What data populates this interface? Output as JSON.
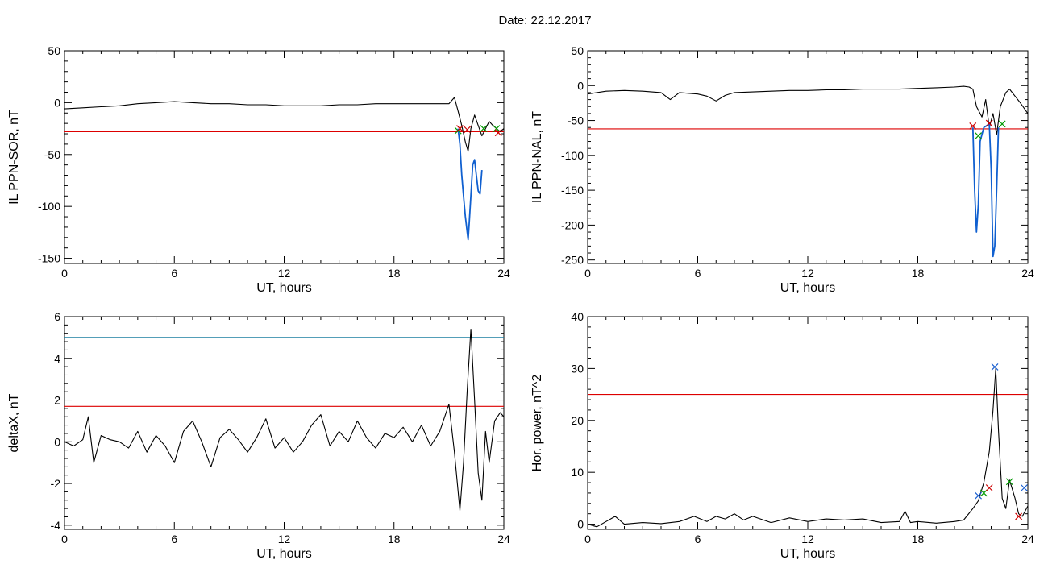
{
  "title": "Date:  22.12.2017",
  "chart_data": [
    {
      "type": "line",
      "xlabel": "UT, hours",
      "ylabel": "IL PPN-SOR, nT",
      "xlim": [
        0,
        24
      ],
      "ylim": [
        -155,
        50
      ],
      "xticks": [
        "0",
        "6",
        "12",
        "18",
        "24"
      ],
      "yticks": [
        -150,
        -100,
        -50,
        0,
        50
      ],
      "yticklabels": [
        "-150",
        "-100",
        "-50",
        "0",
        "50"
      ],
      "threshold": {
        "y": -28,
        "color": "#dd0000"
      },
      "series": [
        {
          "color": "#000000",
          "x": [
            0,
            1,
            2,
            3,
            4,
            5,
            6,
            7,
            8,
            9,
            10,
            11,
            12,
            13,
            14,
            15,
            16,
            17,
            18,
            19,
            20,
            21,
            21.3,
            21.5,
            21.7,
            21.9,
            22.05,
            22.2,
            22.4,
            22.6,
            22.8,
            23.0,
            23.2,
            23.4,
            23.6,
            23.8,
            24
          ],
          "y": [
            -6,
            -5,
            -4,
            -3,
            -1,
            0,
            1,
            0,
            -1,
            -1,
            -2,
            -2,
            -3,
            -3,
            -3,
            -2,
            -2,
            -1,
            -1,
            -1,
            -1,
            -1,
            5,
            -8,
            -22,
            -38,
            -47,
            -25,
            -12,
            -22,
            -32,
            -25,
            -18,
            -22,
            -25,
            -28,
            -25
          ]
        },
        {
          "color": "#1060d0",
          "x": [
            21.5,
            21.6,
            21.7,
            21.8,
            21.9,
            22.0,
            22.05,
            22.1,
            22.2,
            22.3,
            22.4,
            22.5,
            22.6,
            22.7,
            22.8
          ],
          "y": [
            -25,
            -40,
            -70,
            -90,
            -110,
            -125,
            -132,
            -118,
            -90,
            -60,
            -55,
            -70,
            -85,
            -88,
            -65
          ]
        }
      ],
      "markers": [
        {
          "x": 21.5,
          "y": -27,
          "color": "#009900"
        },
        {
          "x": 21.6,
          "y": -25,
          "color": "#cc0000"
        },
        {
          "x": 22.0,
          "y": -26,
          "color": "#cc0000"
        },
        {
          "x": 22.9,
          "y": -25,
          "color": "#009900"
        },
        {
          "x": 23.6,
          "y": -25,
          "color": "#009900"
        },
        {
          "x": 23.7,
          "y": -29,
          "color": "#cc0000"
        }
      ]
    },
    {
      "type": "line",
      "xlabel": "UT, hours",
      "ylabel": "IL PPN-NAL, nT",
      "xlim": [
        0,
        24
      ],
      "ylim": [
        -255,
        50
      ],
      "xticks": [
        "0",
        "6",
        "12",
        "18",
        "24"
      ],
      "yticks": [
        -250,
        -200,
        -150,
        -100,
        -50,
        0,
        50
      ],
      "yticklabels": [
        "-250",
        "-200",
        "-150",
        "-100",
        "-50",
        "0",
        "50"
      ],
      "threshold": {
        "y": -62,
        "color": "#dd0000"
      },
      "series": [
        {
          "color": "#000000",
          "x": [
            0,
            1,
            2,
            3,
            4,
            4.5,
            5,
            6,
            6.5,
            7,
            7.5,
            8,
            9,
            10,
            11,
            12,
            13,
            14,
            15,
            16,
            17,
            18,
            19,
            20,
            20.5,
            20.8,
            21.0,
            21.2,
            21.5,
            21.7,
            21.9,
            22.1,
            22.3,
            22.5,
            22.8,
            23.0,
            23.3,
            23.6,
            24
          ],
          "y": [
            -12,
            -8,
            -7,
            -8,
            -10,
            -20,
            -10,
            -12,
            -15,
            -22,
            -14,
            -10,
            -9,
            -8,
            -7,
            -7,
            -6,
            -6,
            -5,
            -5,
            -5,
            -4,
            -3,
            -2,
            -1,
            -2,
            -5,
            -30,
            -45,
            -20,
            -60,
            -40,
            -70,
            -30,
            -10,
            -5,
            -15,
            -25,
            -40
          ]
        },
        {
          "color": "#1060d0",
          "x": [
            21.0,
            21.1,
            21.2,
            21.3,
            21.4,
            21.6,
            21.9,
            22.0,
            22.1,
            22.2,
            22.3,
            22.4
          ],
          "y": [
            -60,
            -150,
            -210,
            -170,
            -80,
            -60,
            -55,
            -120,
            -245,
            -230,
            -150,
            -60
          ]
        }
      ],
      "markers": [
        {
          "x": 21.0,
          "y": -58,
          "color": "#cc0000"
        },
        {
          "x": 21.3,
          "y": -72,
          "color": "#009900"
        },
        {
          "x": 21.9,
          "y": -54,
          "color": "#cc0000"
        },
        {
          "x": 22.6,
          "y": -55,
          "color": "#009900"
        }
      ]
    },
    {
      "type": "line",
      "xlabel": "UT, hours",
      "ylabel": "deltaX, nT",
      "xlim": [
        0,
        24
      ],
      "ylim": [
        -4.2,
        6
      ],
      "xticks": [
        "0",
        "6",
        "12",
        "18",
        "24"
      ],
      "yticks": [
        -4,
        -2,
        0,
        2,
        4,
        6
      ],
      "yticklabels": [
        "-4",
        "-2",
        "0",
        "2",
        "4",
        "6"
      ],
      "threshold": {
        "y": 1.7,
        "color": "#dd0000"
      },
      "threshold2": {
        "y": 5.0,
        "color": "#1a7fa0"
      },
      "series": [
        {
          "color": "#000000",
          "x": [
            0,
            0.5,
            1,
            1.3,
            1.6,
            2,
            2.5,
            3,
            3.5,
            4,
            4.5,
            5,
            5.5,
            6,
            6.5,
            7,
            7.5,
            8,
            8.5,
            9,
            9.5,
            10,
            10.5,
            11,
            11.5,
            12,
            12.5,
            13,
            13.5,
            14,
            14.5,
            15,
            15.5,
            16,
            16.5,
            17,
            17.5,
            18,
            18.5,
            19,
            19.5,
            20,
            20.5,
            21,
            21.3,
            21.6,
            21.8,
            22.0,
            22.2,
            22.4,
            22.6,
            22.8,
            23.0,
            23.2,
            23.5,
            23.8,
            24
          ],
          "y": [
            0,
            -0.2,
            0.1,
            1.2,
            -1.0,
            0.3,
            0.1,
            0.0,
            -0.3,
            0.5,
            -0.5,
            0.3,
            -0.2,
            -1.0,
            0.5,
            1.0,
            0.0,
            -1.2,
            0.2,
            0.6,
            0.1,
            -0.5,
            0.2,
            1.1,
            -0.3,
            0.2,
            -0.5,
            0.0,
            0.8,
            1.3,
            -0.2,
            0.5,
            0.0,
            1.0,
            0.2,
            -0.3,
            0.4,
            0.2,
            0.7,
            0.0,
            0.8,
            -0.2,
            0.5,
            1.8,
            -0.5,
            -3.3,
            -1.0,
            2.5,
            5.4,
            2.0,
            -1.5,
            -2.8,
            0.5,
            -1.0,
            1.0,
            1.4,
            1.2
          ]
        }
      ],
      "markers": []
    },
    {
      "type": "line",
      "xlabel": "UT, hours",
      "ylabel": "Hor. power, nT^2",
      "xlim": [
        0,
        24
      ],
      "ylim": [
        -1,
        40
      ],
      "xticks": [
        "0",
        "6",
        "12",
        "18",
        "24"
      ],
      "yticks": [
        0,
        10,
        20,
        30,
        40
      ],
      "yticklabels": [
        "0",
        "10",
        "20",
        "30",
        "40"
      ],
      "threshold": {
        "y": 25,
        "color": "#dd0000"
      },
      "series": [
        {
          "color": "#000000",
          "x": [
            0,
            0.5,
            1,
            1.5,
            2,
            3,
            4,
            5,
            5.8,
            6.5,
            7,
            7.5,
            8,
            8.5,
            9,
            10,
            11,
            12,
            13,
            14,
            15,
            16,
            17,
            17.3,
            17.6,
            18,
            19,
            20,
            20.5,
            21.0,
            21.3,
            21.6,
            21.9,
            22.1,
            22.25,
            22.4,
            22.6,
            22.8,
            23.0,
            23.3,
            23.5,
            23.7,
            24
          ],
          "y": [
            0,
            -0.5,
            0.5,
            1.5,
            0,
            0.3,
            0.1,
            0.5,
            1.5,
            0.5,
            1.5,
            1.0,
            2.0,
            0.8,
            1.5,
            0.3,
            1.2,
            0.5,
            1.0,
            0.8,
            1.0,
            0.3,
            0.5,
            2.5,
            0.3,
            0.5,
            0.2,
            0.5,
            0.8,
            3.0,
            4.5,
            8.0,
            14.0,
            22.0,
            30.0,
            18.0,
            5.0,
            3.0,
            8.5,
            5.0,
            2.0,
            1.5,
            3.5
          ]
        }
      ],
      "markers": [
        {
          "x": 21.3,
          "y": 5.5,
          "color": "#1a5fd0"
        },
        {
          "x": 21.6,
          "y": 6.0,
          "color": "#009900"
        },
        {
          "x": 21.9,
          "y": 7.0,
          "color": "#cc0000"
        },
        {
          "x": 22.2,
          "y": 30.3,
          "color": "#1a5fd0"
        },
        {
          "x": 23.0,
          "y": 8.2,
          "color": "#009900"
        },
        {
          "x": 23.5,
          "y": 1.5,
          "color": "#cc0000"
        },
        {
          "x": 23.8,
          "y": 7.0,
          "color": "#1a5fd0"
        }
      ]
    }
  ]
}
